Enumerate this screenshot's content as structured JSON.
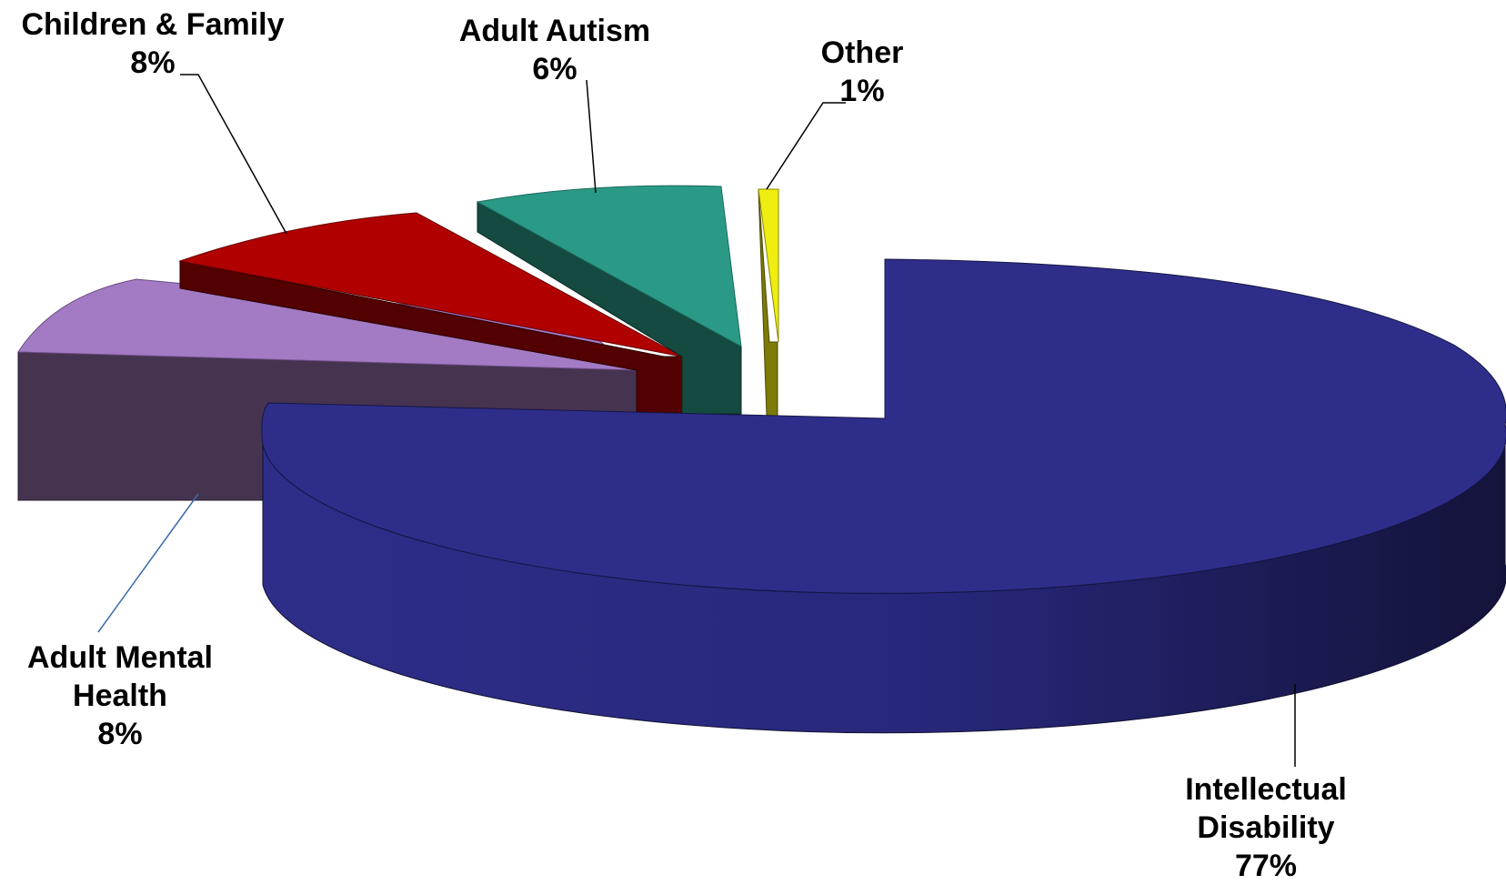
{
  "chart_data": {
    "type": "pie",
    "style": "3d-exploded",
    "title": "",
    "categories": [
      "Intellectual Disability",
      "Adult Mental Health",
      "Children & Family",
      "Adult Autism",
      "Other"
    ],
    "values": [
      77,
      8,
      8,
      6,
      1
    ],
    "unit": "%",
    "legend": "none",
    "slices": [
      {
        "name": "Intellectual Disability",
        "label": [
          "Intellectual",
          "Disability"
        ],
        "pct": "77%",
        "value": 77,
        "color": "#2e2e8a",
        "side_color": "#23236c"
      },
      {
        "name": "Adult Mental Health",
        "label": [
          "Adult Mental",
          "Health"
        ],
        "pct": "8%",
        "value": 8,
        "color": "#a37ac4",
        "side_color": "#463350"
      },
      {
        "name": "Children & Family",
        "label": [
          "Children & Family"
        ],
        "pct": "8%",
        "value": 8,
        "color": "#b00000",
        "side_color": "#520000"
      },
      {
        "name": "Adult Autism",
        "label": [
          "Adult Autism"
        ],
        "pct": "6%",
        "value": 6,
        "color": "#2a9a87",
        "side_color": "#144a40"
      },
      {
        "name": "Other",
        "label": [
          "Other"
        ],
        "pct": "1%",
        "value": 1,
        "color": "#f0ee10",
        "side_color": "#7d7a08"
      }
    ]
  }
}
